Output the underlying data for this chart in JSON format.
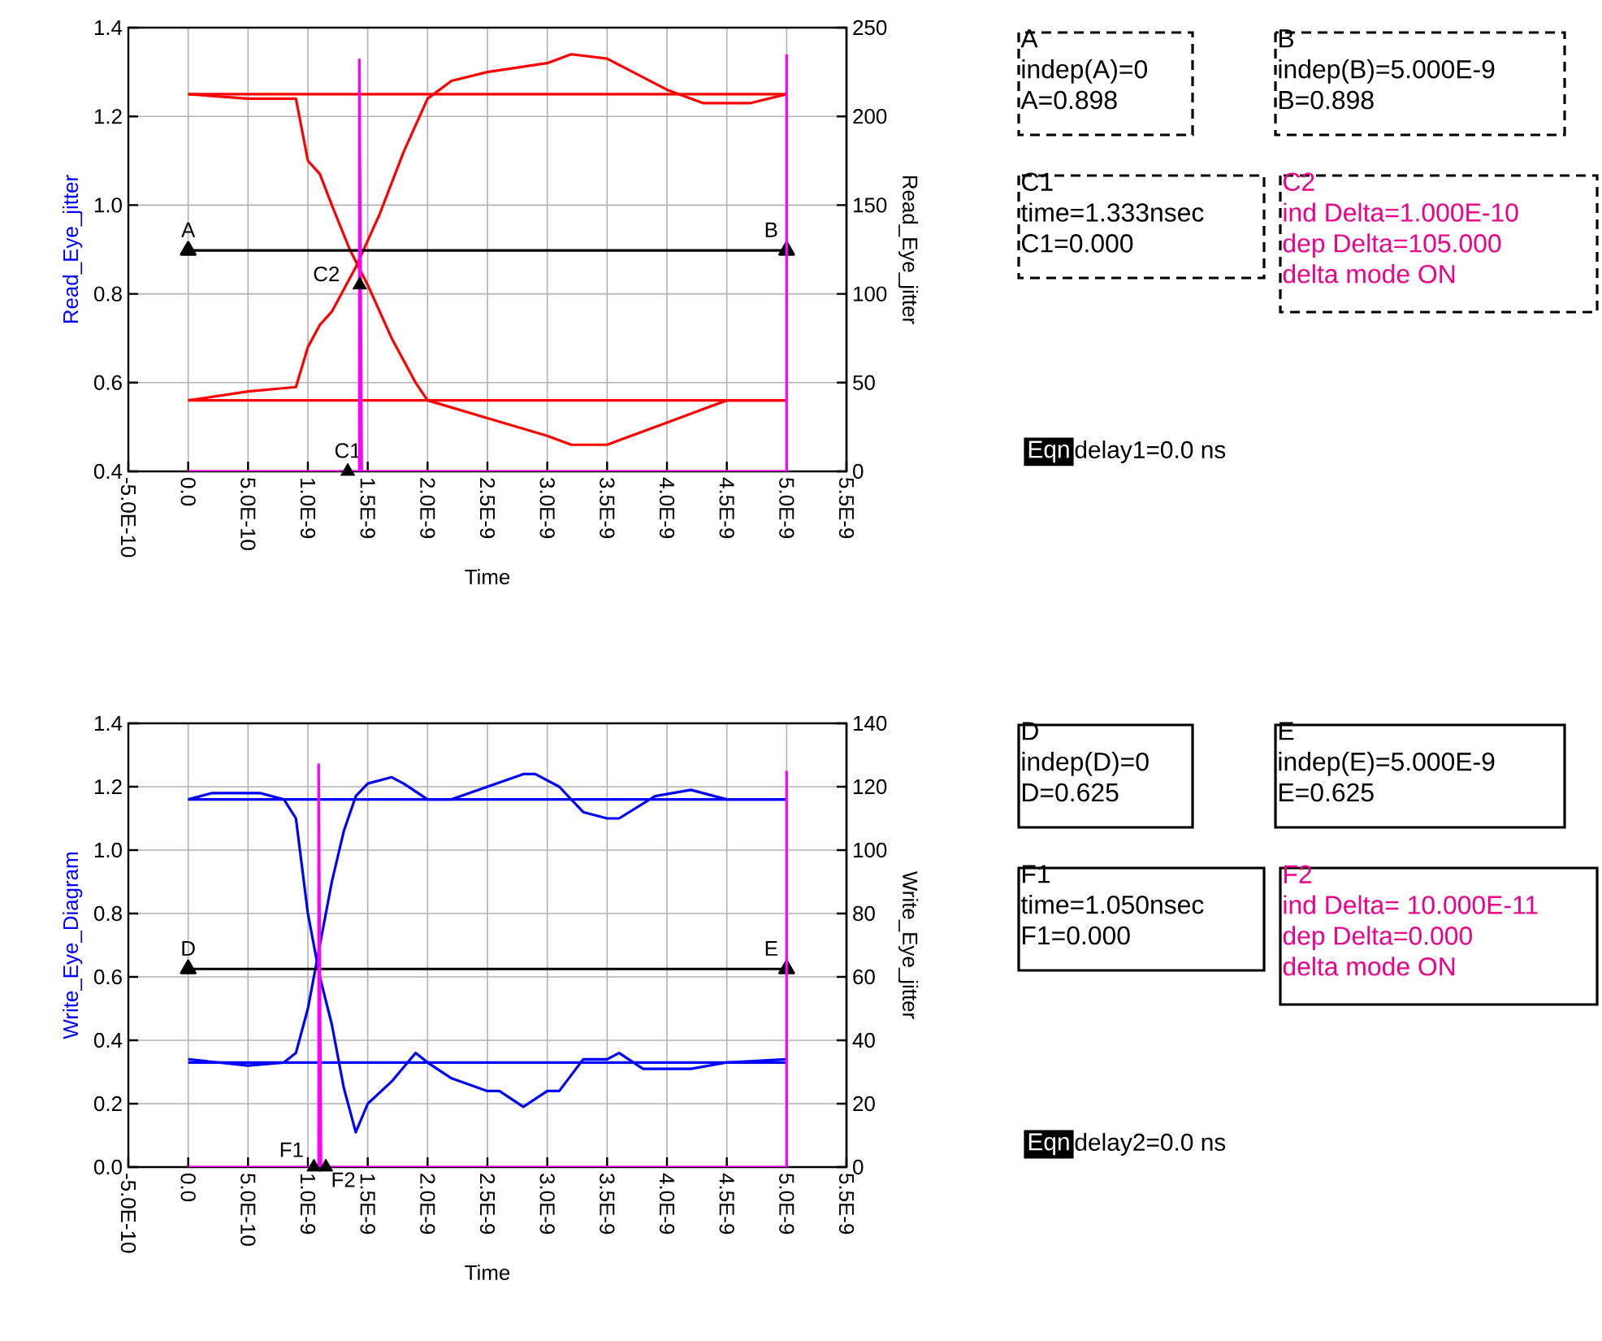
{
  "chart_data": [
    {
      "type": "line",
      "xlabel": "Time",
      "ylabel": "Read_Eye_jitter",
      "y2label": "Read_Eye_jitter",
      "xlim": [
        -5e-10,
        5.5e-09
      ],
      "xticks": [
        {
          "value": -5e-10,
          "label": "-5.0E-10"
        },
        {
          "value": 0,
          "label": "0.0"
        },
        {
          "value": 5e-10,
          "label": "5.0E-10"
        },
        {
          "value": 1e-09,
          "label": "1.0E-9"
        },
        {
          "value": 1.5e-09,
          "label": "1.5E-9"
        },
        {
          "value": 2e-09,
          "label": "2.0E-9"
        },
        {
          "value": 2.5e-09,
          "label": "2.5E-9"
        },
        {
          "value": 3e-09,
          "label": "3.0E-9"
        },
        {
          "value": 3.5e-09,
          "label": "3.5E-9"
        },
        {
          "value": 4e-09,
          "label": "4.0E-9"
        },
        {
          "value": 4.5e-09,
          "label": "4.5E-9"
        },
        {
          "value": 5e-09,
          "label": "5.0E-9"
        },
        {
          "value": 5.5e-09,
          "label": "5.5E-9"
        }
      ],
      "ylim": [
        0.4,
        1.4
      ],
      "yticks": [
        {
          "value": 0.4,
          "label": "0.4"
        },
        {
          "value": 0.6,
          "label": "0.6"
        },
        {
          "value": 0.8,
          "label": "0.8"
        },
        {
          "value": 1,
          "label": "1.0"
        },
        {
          "value": 1.2,
          "label": "1.2"
        },
        {
          "value": 1.4,
          "label": "1.4"
        }
      ],
      "y2lim": [
        0,
        250
      ],
      "y2ticks": [
        0,
        50,
        100,
        150,
        200,
        250
      ],
      "grid": true,
      "series": [
        {
          "type": "line",
          "color": "#ff0000",
          "x": [
            0,
            5e-09
          ],
          "values": [
            1.25,
            1.25
          ]
        },
        {
          "type": "line",
          "color": "#ff0000",
          "x": [
            0,
            5e-09
          ],
          "values": [
            0.56,
            0.56
          ]
        },
        {
          "type": "line",
          "color": "#ff0000",
          "x": [
            0,
            5e-10,
            9e-10,
            1e-09,
            1.1e-09,
            1.2e-09,
            1.35e-09,
            1.5e-09,
            1.7e-09,
            1.9e-09,
            2e-09,
            2.5e-09,
            3e-09,
            3.2e-09,
            3.5e-09,
            4e-09,
            4.5e-09,
            5e-09
          ],
          "values": [
            1.25,
            1.24,
            1.24,
            1.1,
            1.07,
            1.0,
            0.9,
            0.82,
            0.7,
            0.6,
            0.56,
            0.52,
            0.48,
            0.46,
            0.46,
            0.51,
            0.56,
            0.56
          ]
        },
        {
          "type": "line",
          "color": "#ff0000",
          "x": [
            0,
            5e-10,
            9e-10,
            1e-09,
            1.1e-09,
            1.2e-09,
            1.4e-09,
            1.6e-09,
            1.8e-09,
            2e-09,
            2.2e-09,
            2.5e-09,
            3e-09,
            3.2e-09,
            3.5e-09,
            4e-09,
            4.3e-09,
            4.7e-09,
            5e-09
          ],
          "values": [
            0.56,
            0.58,
            0.59,
            0.68,
            0.73,
            0.76,
            0.86,
            0.98,
            1.12,
            1.24,
            1.28,
            1.3,
            1.32,
            1.34,
            1.33,
            1.26,
            1.23,
            1.23,
            1.25
          ]
        },
        {
          "type": "line",
          "color": "#000000",
          "marker": "triangle",
          "x": [
            0,
            5e-09
          ],
          "values": [
            0.898,
            0.898
          ]
        },
        {
          "type": "line",
          "axis": "y2",
          "color": "#ff00ff",
          "x": [
            0,
            1.43e-09,
            1.43e-09,
            1.45e-09,
            5e-09,
            5e-09
          ],
          "values": [
            0,
            0,
            232,
            0,
            0,
            235
          ]
        },
        {
          "type": "scatter",
          "axis": "y2",
          "color": "#000000",
          "marker": "triangle",
          "x": [
            1.333e-09
          ],
          "values": [
            0
          ]
        },
        {
          "type": "scatter",
          "axis": "y2",
          "color": "#000000",
          "marker": "triangle",
          "x": [
            1.433e-09
          ],
          "values": [
            105
          ]
        }
      ],
      "annotations": [
        {
          "text": "A",
          "x": 0,
          "y": 0.898
        },
        {
          "text": "B",
          "x": 5e-09,
          "y": 0.898
        },
        {
          "text": "C1",
          "x": 1.333e-09,
          "y": 0.4
        },
        {
          "text": "C2",
          "x": 1.433e-09,
          "y": 0.82
        }
      ]
    },
    {
      "type": "other",
      "annotations": [
        "A",
        "indep(A)=0",
        "A=0.898",
        "B",
        "indep(B)=5.000E-9",
        "B=0.898",
        "C1",
        "time=1.333nsec",
        "C1=0.000",
        "C2",
        "ind Delta=1.000E-10",
        "dep Delta=105.000",
        "delta mode ON",
        "Eqn",
        "delay1=0.0 ns"
      ]
    },
    {
      "type": "line",
      "xlabel": "Time",
      "ylabel": "Write_Eye_Diagram",
      "y2label": "Write_Eye_jitter",
      "xlim": [
        -5e-10,
        5.5e-09
      ],
      "xticks": [
        {
          "value": -5e-10,
          "label": "-5.0E-10"
        },
        {
          "value": 0,
          "label": "0.0"
        },
        {
          "value": 5e-10,
          "label": "5.0E-10"
        },
        {
          "value": 1e-09,
          "label": "1.0E-9"
        },
        {
          "value": 1.5e-09,
          "label": "1.5E-9"
        },
        {
          "value": 2e-09,
          "label": "2.0E-9"
        },
        {
          "value": 2.5e-09,
          "label": "2.5E-9"
        },
        {
          "value": 3e-09,
          "label": "3.0E-9"
        },
        {
          "value": 3.5e-09,
          "label": "3.5E-9"
        },
        {
          "value": 4e-09,
          "label": "4.0E-9"
        },
        {
          "value": 4.5e-09,
          "label": "4.5E-9"
        },
        {
          "value": 5e-09,
          "label": "5.0E-9"
        },
        {
          "value": 5.5e-09,
          "label": "5.5E-9"
        }
      ],
      "ylim": [
        0,
        1.4
      ],
      "yticks": [
        {
          "value": 0,
          "label": "0.0"
        },
        {
          "value": 0.2,
          "label": "0.2"
        },
        {
          "value": 0.4,
          "label": "0.4"
        },
        {
          "value": 0.6,
          "label": "0.6"
        },
        {
          "value": 0.8,
          "label": "0.8"
        },
        {
          "value": 1,
          "label": "1.0"
        },
        {
          "value": 1.2,
          "label": "1.2"
        },
        {
          "value": 1.4,
          "label": "1.4"
        }
      ],
      "y2lim": [
        0,
        140
      ],
      "y2ticks": [
        0,
        20,
        40,
        60,
        80,
        100,
        120,
        140
      ],
      "grid": true,
      "series": [
        {
          "type": "line",
          "color": "#0000ff",
          "x": [
            0,
            5e-09
          ],
          "values": [
            1.16,
            1.16
          ]
        },
        {
          "type": "line",
          "color": "#0000ff",
          "x": [
            0,
            5e-09
          ],
          "values": [
            0.33,
            0.33
          ]
        },
        {
          "type": "line",
          "color": "#0000ff",
          "x": [
            0,
            2e-10,
            6e-10,
            8e-10,
            9e-10,
            1e-09,
            1.1e-09,
            1.2e-09,
            1.3e-09,
            1.4e-09,
            1.5e-09,
            1.7e-09,
            1.9e-09,
            2e-09,
            2.2e-09,
            2.5e-09,
            2.6e-09,
            2.8e-09,
            3e-09,
            3.1e-09,
            3.3e-09,
            3.5e-09,
            3.6e-09,
            3.8e-09,
            4.2e-09,
            4.5e-09,
            5e-09
          ],
          "values": [
            1.16,
            1.18,
            1.18,
            1.16,
            1.1,
            0.8,
            0.6,
            0.45,
            0.25,
            0.11,
            0.2,
            0.27,
            0.36,
            0.33,
            0.28,
            0.24,
            0.24,
            0.19,
            0.24,
            0.24,
            0.34,
            0.34,
            0.36,
            0.31,
            0.31,
            0.33,
            0.34
          ]
        },
        {
          "type": "line",
          "color": "#0000ff",
          "x": [
            0,
            5e-10,
            8e-10,
            9e-10,
            1e-09,
            1.1e-09,
            1.2e-09,
            1.3e-09,
            1.4e-09,
            1.5e-09,
            1.7e-09,
            1.8e-09,
            2e-09,
            2.2e-09,
            2.5e-09,
            2.8e-09,
            2.9e-09,
            3.1e-09,
            3.3e-09,
            3.5e-09,
            3.6e-09,
            3.9e-09,
            4.2e-09,
            4.5e-09,
            5e-09
          ],
          "values": [
            0.34,
            0.32,
            0.33,
            0.36,
            0.5,
            0.7,
            0.9,
            1.06,
            1.17,
            1.21,
            1.23,
            1.21,
            1.16,
            1.16,
            1.2,
            1.24,
            1.24,
            1.2,
            1.12,
            1.1,
            1.1,
            1.17,
            1.19,
            1.16,
            1.16
          ]
        },
        {
          "type": "line",
          "color": "#000000",
          "marker": "triangle",
          "x": [
            0,
            5e-09
          ],
          "values": [
            0.625,
            0.625
          ]
        },
        {
          "type": "line",
          "axis": "y2",
          "color": "#ff00ff",
          "x": [
            0,
            1.09e-09,
            1.09e-09,
            1.11e-09,
            5e-09,
            5e-09
          ],
          "values": [
            0,
            0,
            127,
            0,
            0,
            125
          ]
        },
        {
          "type": "scatter",
          "axis": "y2",
          "color": "#000000",
          "marker": "triangle",
          "x": [
            1.05e-09
          ],
          "values": [
            0
          ]
        },
        {
          "type": "scatter",
          "axis": "y2",
          "color": "#000000",
          "marker": "triangle",
          "x": [
            1.15e-09
          ],
          "values": [
            0
          ]
        }
      ],
      "annotations": [
        {
          "text": "D",
          "x": 0,
          "y": 0.625
        },
        {
          "text": "E",
          "x": 5e-09,
          "y": 0.625
        },
        {
          "text": "F1",
          "x": 1.05e-09,
          "y": 0
        },
        {
          "text": "F2",
          "x": 1.15e-09,
          "y": 0
        }
      ]
    },
    {
      "type": "other",
      "annotations": [
        "D",
        "indep(D)=0",
        "D=0.625",
        "E",
        "indep(E)=5.000E-9",
        "E=0.625",
        "F1",
        "time=1.050nsec",
        "F1=0.000",
        "F2",
        "ind Delta= 10.000E-11",
        "dep Delta=0.000",
        "delta mode ON",
        "Eqn",
        "delay2=0.0 ns"
      ]
    }
  ]
}
